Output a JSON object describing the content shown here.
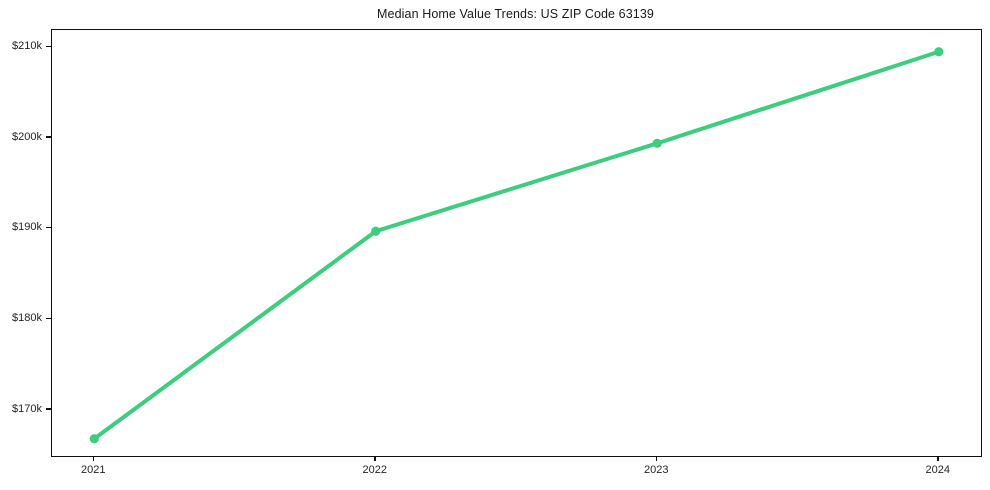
{
  "chart_data": {
    "type": "line",
    "title": "Median Home Value Trends: US ZIP Code 63139",
    "x": [
      2021,
      2022,
      2023,
      2024
    ],
    "series": [
      {
        "name": "Median Home Value",
        "values": [
          166800,
          189700,
          199400,
          209500
        ],
        "color": "#3ace7d"
      }
    ],
    "xlabel": "",
    "ylabel": "",
    "xlim": [
      2020.85,
      2024.15
    ],
    "ylim": [
      164900,
      211900
    ],
    "xticks": [
      {
        "value": 2021,
        "label": "2021"
      },
      {
        "value": 2022,
        "label": "2022"
      },
      {
        "value": 2023,
        "label": "2023"
      },
      {
        "value": 2024,
        "label": "2024"
      }
    ],
    "yticks": [
      {
        "value": 170000,
        "label": "$170k"
      },
      {
        "value": 180000,
        "label": "$180k"
      },
      {
        "value": 190000,
        "label": "$190k"
      },
      {
        "value": 200000,
        "label": "$200k"
      },
      {
        "value": 210000,
        "label": "$210k"
      }
    ],
    "grid": false,
    "legend_position": "none",
    "marker": "circle",
    "line_width": 4,
    "marker_radius": 4.6,
    "axis_color": "#111111",
    "tick_text_color": "#262626",
    "plot_background": "#ffffff"
  }
}
